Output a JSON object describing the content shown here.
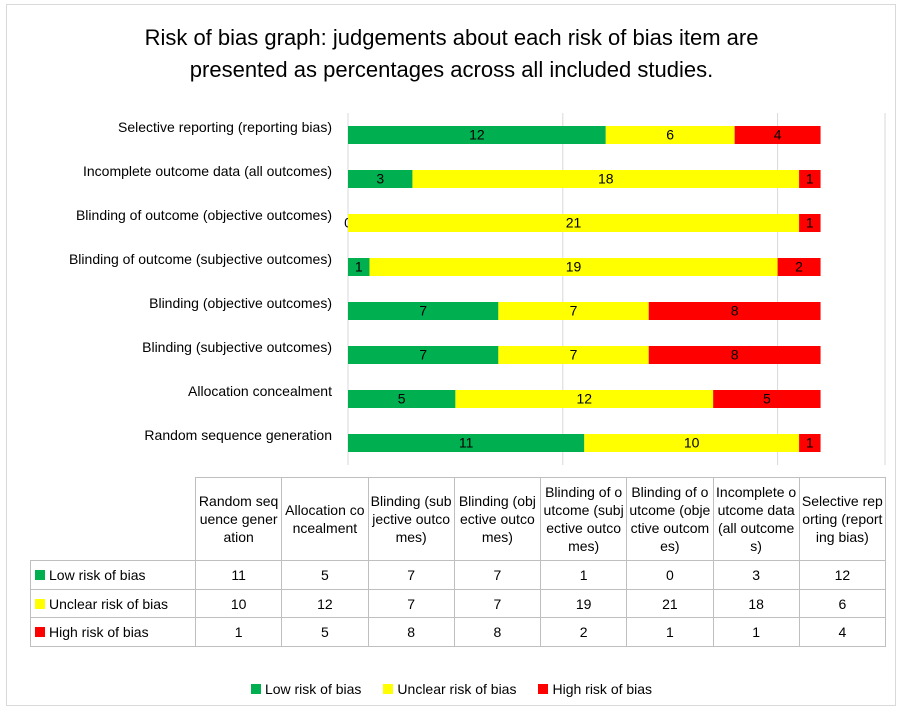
{
  "chart_data": {
    "type": "stacked_bar",
    "orientation": "horizontal",
    "title": "Risk of bias graph: judgements about each risk of bias item are presented as percentages across all included studies.",
    "categories": [
      "Random sequence generation",
      "Allocation concealment",
      "Blinding (subjective outcomes)",
      "Blinding (objective outcomes)",
      "Blinding of outcome (subjective outcomes)",
      "Blinding of outcome (objective outcomes)",
      "Incomplete outcome data (all outcomes)",
      "Selective reporting (reporting bias)"
    ],
    "series": [
      {
        "name": "Low risk of bias",
        "color": "#00b050",
        "values": [
          11,
          5,
          7,
          7,
          1,
          0,
          3,
          12
        ]
      },
      {
        "name": "Unclear risk of bias",
        "color": "#ffff00",
        "values": [
          10,
          12,
          7,
          7,
          19,
          21,
          18,
          6
        ]
      },
      {
        "name": "High risk of bias",
        "color": "#ff0000",
        "values": [
          1,
          5,
          8,
          8,
          2,
          1,
          1,
          4
        ]
      }
    ],
    "xlim": [
      0,
      25
    ],
    "xticks": [
      0,
      10,
      20
    ],
    "grid": true,
    "data_table": true,
    "legend": "bottom"
  }
}
